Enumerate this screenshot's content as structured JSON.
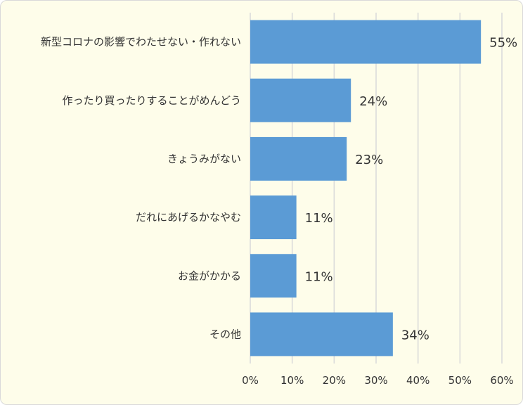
{
  "chart_data": {
    "type": "bar",
    "orientation": "horizontal",
    "title": "",
    "xlabel": "",
    "ylabel": "",
    "categories": [
      "新型コロナの影響でわたせない・作れない",
      "作ったり買ったりすることがめんどう",
      "きょうみがない",
      "だれにあげるかなやむ",
      "お金がかかる",
      "その他"
    ],
    "values": [
      55,
      24,
      23,
      11,
      11,
      34
    ],
    "value_labels": [
      "55%",
      "24%",
      "23%",
      "11%",
      "11%",
      "34%"
    ],
    "xlim": [
      0,
      60
    ],
    "xticks": [
      0,
      10,
      20,
      30,
      40,
      50,
      60
    ],
    "xtick_labels": [
      "0%",
      "10%",
      "20%",
      "30%",
      "40%",
      "50%",
      "60%"
    ],
    "grid": "vertical",
    "legend": "none",
    "colors": {
      "bar": "#5b9bd5",
      "background": "#fefdea",
      "grid": "#d9d9d9",
      "text": "#333333"
    }
  }
}
